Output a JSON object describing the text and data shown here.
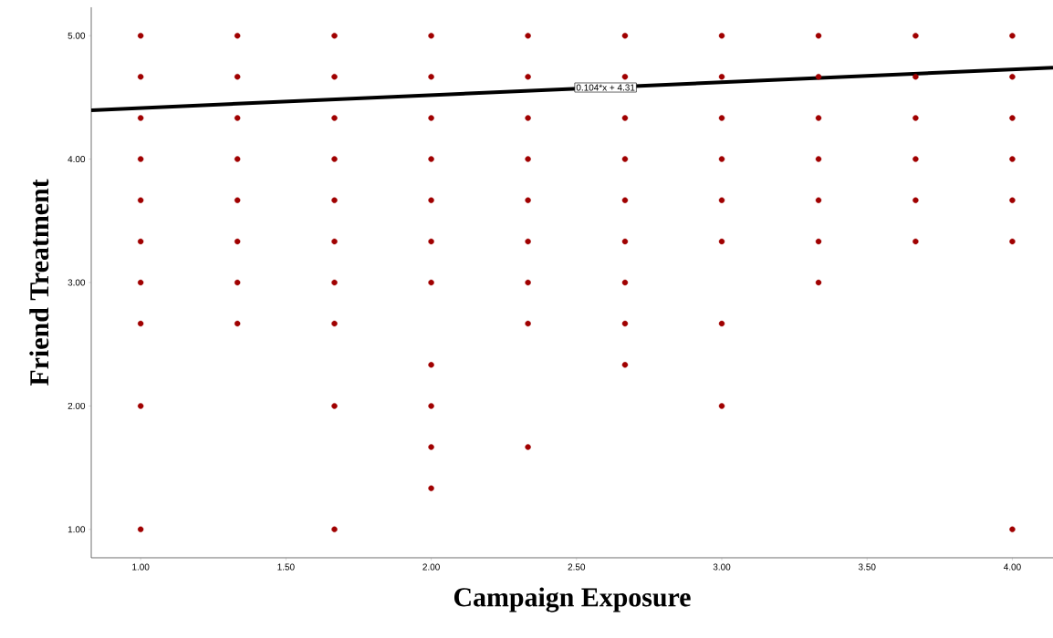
{
  "chart_data": {
    "type": "scatter",
    "xlabel": "Campaign Exposure",
    "ylabel": "Friend Treatment",
    "xlim": [
      0.83,
      4.14
    ],
    "ylim": [
      0.77,
      5.23
    ],
    "xticks": [
      {
        "value": 1,
        "label": "1.00"
      },
      {
        "value": 1.5,
        "label": "1.50"
      },
      {
        "value": 2,
        "label": "2.00"
      },
      {
        "value": 2.5,
        "label": "2.50"
      },
      {
        "value": 3,
        "label": "3.00"
      },
      {
        "value": 3.5,
        "label": "3.50"
      },
      {
        "value": 4,
        "label": "4.00"
      }
    ],
    "yticks": [
      {
        "value": 1,
        "label": "1.00"
      },
      {
        "value": 2,
        "label": "2.00"
      },
      {
        "value": 3,
        "label": "3.00"
      },
      {
        "value": 4,
        "label": "4.00"
      },
      {
        "value": 5,
        "label": "5.00"
      }
    ],
    "series": [
      {
        "marker": "circle",
        "color": "#a00000",
        "x": [
          1,
          1,
          1,
          1,
          1,
          1,
          1,
          1,
          1,
          1,
          1.333,
          1.333,
          1.333,
          1.333,
          1.333,
          1.333,
          1.333,
          1.333,
          1.667,
          1.667,
          1.667,
          1.667,
          1.667,
          1.667,
          1.667,
          1.667,
          1.667,
          1.667,
          2,
          2,
          2,
          2,
          2,
          2,
          2,
          2,
          2,
          2,
          2,
          2.333,
          2.333,
          2.333,
          2.333,
          2.333,
          2.333,
          2.333,
          2.333,
          2.333,
          2.667,
          2.667,
          2.667,
          2.667,
          2.667,
          2.667,
          2.667,
          2.667,
          2.667,
          3,
          3,
          3,
          3,
          3,
          3,
          3,
          3,
          3.333,
          3.333,
          3.333,
          3.333,
          3.333,
          3.333,
          3.333,
          3.667,
          3.667,
          3.667,
          3.667,
          3.667,
          3.667,
          4,
          4,
          4,
          4,
          4,
          4,
          4
        ],
        "values": [
          5,
          4.667,
          4.333,
          4,
          3.667,
          3.333,
          3,
          2.667,
          2,
          1,
          5,
          4.667,
          4.333,
          4,
          3.667,
          3.333,
          3,
          2.667,
          5,
          4.667,
          4.333,
          4,
          3.667,
          3.333,
          3,
          2.667,
          2,
          1,
          5,
          4.667,
          4.333,
          4,
          3.667,
          3.333,
          3,
          2.333,
          2,
          1.667,
          1.333,
          5,
          4.667,
          4.333,
          4,
          3.667,
          3.333,
          3,
          2.667,
          1.667,
          5,
          4.667,
          4.333,
          4,
          3.667,
          3.333,
          3,
          2.667,
          2.333,
          5,
          4.667,
          4.333,
          4,
          3.667,
          3.333,
          2.667,
          2,
          5,
          4.667,
          4.333,
          4,
          3.667,
          3.333,
          3,
          5,
          4.667,
          4.333,
          4,
          3.667,
          3.333,
          5,
          4.667,
          4.333,
          4,
          3.667,
          3.333,
          1
        ]
      },
      {
        "type": "line",
        "marker": "none",
        "line_style": "solid",
        "color": "#000000",
        "x": [
          0.83,
          4.14
        ],
        "values": [
          4.396,
          4.741
        ]
      }
    ],
    "annotations": [
      {
        "text": "0.104*x + 4.31",
        "x": 2.6,
        "y": 4.58
      }
    ]
  }
}
